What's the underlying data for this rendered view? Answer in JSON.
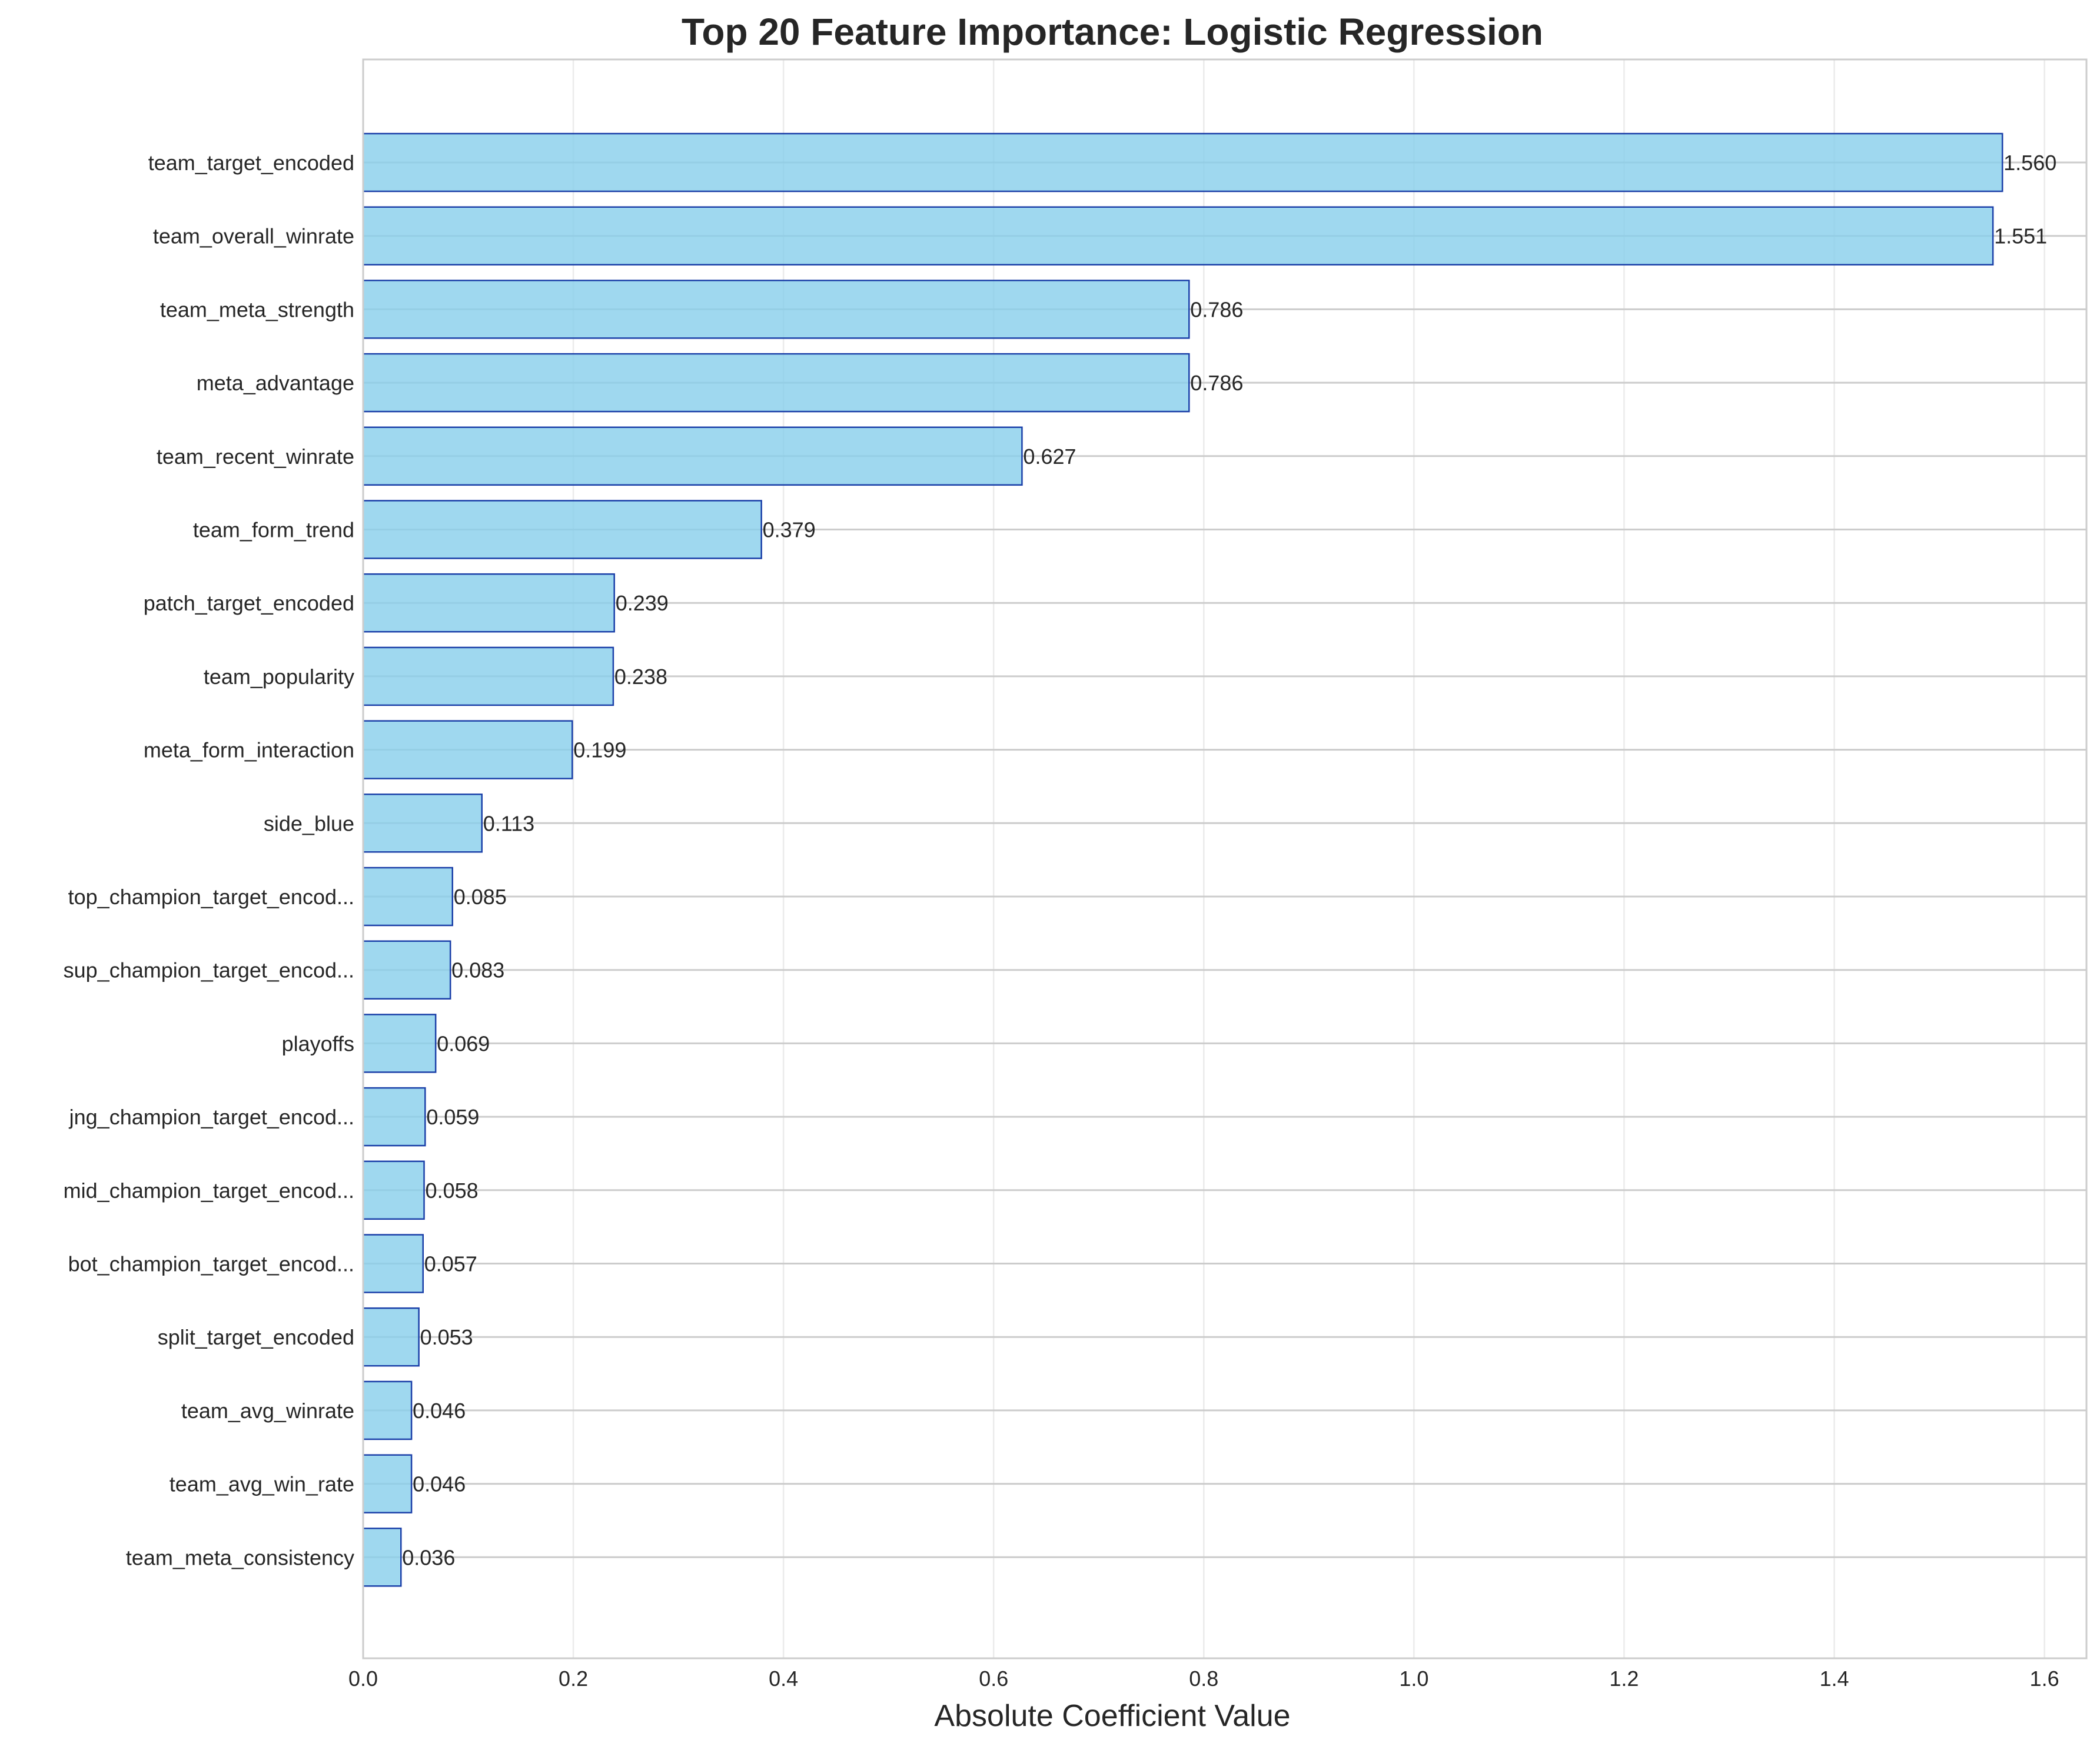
{
  "chart_data": {
    "type": "bar",
    "orientation": "horizontal",
    "title": "Top 20 Feature Importance: Logistic Regression",
    "xlabel": "Absolute Coefficient Value",
    "ylabel": "",
    "xlim": [
      0,
      1.64
    ],
    "xticks": [
      "0.0",
      "0.2",
      "0.4",
      "0.6",
      "0.8",
      "1.0",
      "1.2",
      "1.4",
      "1.6"
    ],
    "grid": true,
    "bar_color": "#87ceeb",
    "edge_color": "#1a3fa8",
    "categories": [
      "team_target_encoded",
      "team_overall_winrate",
      "team_meta_strength",
      "meta_advantage",
      "team_recent_winrate",
      "team_form_trend",
      "patch_target_encoded",
      "team_popularity",
      "meta_form_interaction",
      "side_blue",
      "top_champion_target_encod...",
      "sup_champion_target_encod...",
      "playoffs",
      "jng_champion_target_encod...",
      "mid_champion_target_encod...",
      "bot_champion_target_encod...",
      "split_target_encoded",
      "team_avg_winrate",
      "team_avg_win_rate",
      "team_meta_consistency"
    ],
    "values": [
      1.56,
      1.551,
      0.786,
      0.786,
      0.627,
      0.379,
      0.239,
      0.238,
      0.199,
      0.113,
      0.085,
      0.083,
      0.069,
      0.059,
      0.058,
      0.057,
      0.053,
      0.046,
      0.046,
      0.036
    ],
    "value_labels": [
      "1.560",
      "1.551",
      "0.786",
      "0.786",
      "0.627",
      "0.379",
      "0.239",
      "0.238",
      "0.199",
      "0.113",
      "0.085",
      "0.083",
      "0.069",
      "0.059",
      "0.058",
      "0.057",
      "0.053",
      "0.046",
      "0.046",
      "0.036"
    ]
  }
}
